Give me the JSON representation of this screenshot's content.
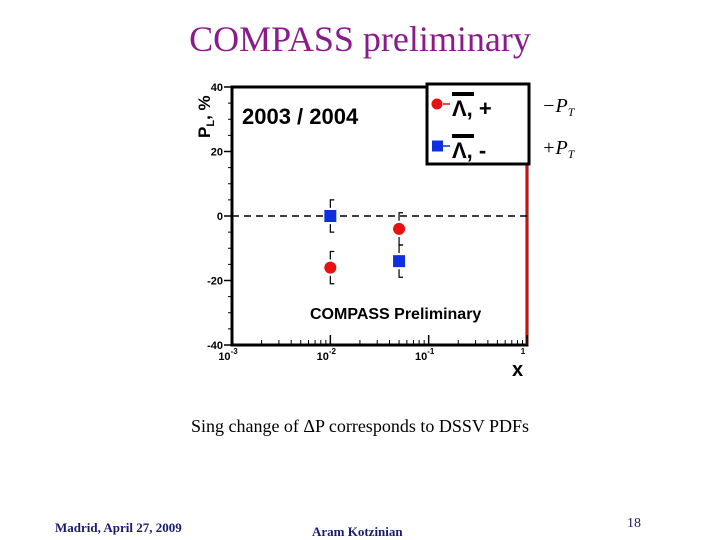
{
  "slide": {
    "title": "COMPASS preliminary",
    "caption": "Sing change of ΔP corresponds to DSSV PDFs",
    "footer_left": "Madrid, April 27,  2009",
    "footer_center": "Aram Kotzinian",
    "page_number": "18"
  },
  "colors": {
    "title": "#8b1a8b",
    "lambda_plus": "#e81010",
    "lambda_minus": "#1030e0",
    "frame": "#000000",
    "frame_right": "#d01010"
  },
  "chart_data": {
    "type": "scatter",
    "title": "2003 / 2004",
    "annotation": "COMPASS Preliminary",
    "xlabel": "x",
    "ylabel_main": "P",
    "ylabel_sub": "L",
    "ylabel_unit": ", %",
    "xscale": "log",
    "xlim": [
      0.001,
      1
    ],
    "ylim": [
      -40,
      40
    ],
    "reference_line_y": 0,
    "legend_placement": "top-right",
    "x_ticks": [
      {
        "mant": "10",
        "exp": "-3"
      },
      {
        "mant": "10",
        "exp": "-2"
      },
      {
        "mant": "10",
        "exp": "-1"
      },
      {
        "mant": "",
        "exp": "1"
      }
    ],
    "y_ticks": [
      "40",
      "20",
      "0",
      "-20",
      "-40"
    ],
    "series": [
      {
        "name": "Λ, +",
        "side_label": "−P",
        "side_sub": "T",
        "marker": "circle",
        "color": "#e81010",
        "points": [
          {
            "x": 0.01,
            "y": -16,
            "err": 5
          },
          {
            "x": 0.05,
            "y": -4,
            "err": 5
          }
        ]
      },
      {
        "name": "Λ, -",
        "side_label": "+P",
        "side_sub": "T",
        "marker": "square",
        "color": "#1030e0",
        "points": [
          {
            "x": 0.01,
            "y": 0,
            "err": 5
          },
          {
            "x": 0.05,
            "y": -14,
            "err": 5
          }
        ]
      }
    ]
  }
}
